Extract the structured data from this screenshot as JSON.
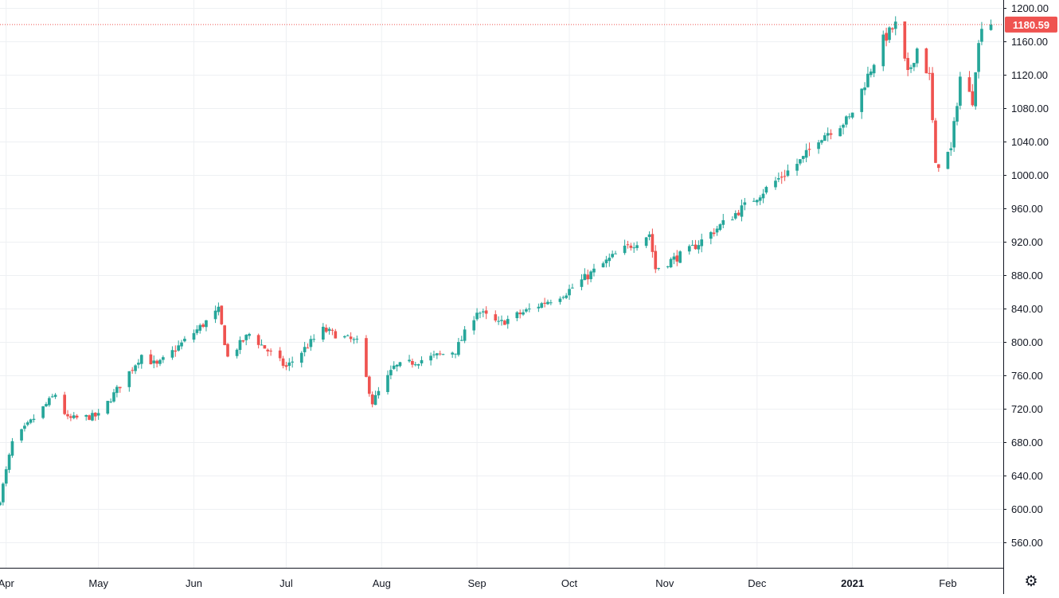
{
  "price_scale": {
    "tick_labels": [
      "560.00",
      "600.00",
      "640.00",
      "680.00",
      "720.00",
      "760.00",
      "800.00",
      "840.00",
      "880.00",
      "920.00",
      "960.00",
      "1000.00",
      "1040.00",
      "1080.00",
      "1120.00",
      "1160.00",
      "1200.00"
    ]
  },
  "time_scale": {
    "tick_labels": [
      "Apr",
      "May",
      "Jun",
      "Jul",
      "Aug",
      "Sep",
      "Oct",
      "Nov",
      "Dec",
      "2021",
      "Feb"
    ],
    "bold_label": "2021"
  },
  "last_price": {
    "label": "1180.59",
    "value": 1180.59
  },
  "colors": {
    "up": "#26a69a",
    "down": "#ef5350",
    "grid": "#eef0f3",
    "axis_line": "#131722",
    "text": "#131722",
    "last_price_line": "#ef5350",
    "last_price_bg": "#ef5350"
  },
  "icons": {
    "settings": "gear-icon"
  },
  "chart_data": {
    "type": "candlestick",
    "grid": true,
    "y_axis_position": "right",
    "ylim": [
      530,
      1210
    ],
    "xlim": [
      "2020-03-30",
      "2021-02-19"
    ],
    "x_ticks": [
      {
        "label": "Apr",
        "date": "2020-04-01"
      },
      {
        "label": "May",
        "date": "2020-05-01"
      },
      {
        "label": "Jun",
        "date": "2020-06-01"
      },
      {
        "label": "Jul",
        "date": "2020-07-01"
      },
      {
        "label": "Aug",
        "date": "2020-08-01"
      },
      {
        "label": "Sep",
        "date": "2020-09-01"
      },
      {
        "label": "Oct",
        "date": "2020-10-01"
      },
      {
        "label": "Nov",
        "date": "2020-11-01"
      },
      {
        "label": "Dec",
        "date": "2020-12-01"
      },
      {
        "label": "2021",
        "date": "2021-01-01"
      },
      {
        "label": "Feb",
        "date": "2021-02-01"
      }
    ],
    "y_ticks": [
      560,
      600,
      640,
      680,
      720,
      760,
      800,
      840,
      880,
      920,
      960,
      1000,
      1040,
      1080,
      1120,
      1160,
      1200
    ],
    "last_price": 1180.59,
    "key_points": [
      {
        "date": "2020-03-30",
        "close": 612
      },
      {
        "date": "2020-04-03",
        "close": 680
      },
      {
        "date": "2020-04-17",
        "close": 738
      },
      {
        "date": "2020-04-21",
        "close": 708
      },
      {
        "date": "2020-05-01",
        "close": 712
      },
      {
        "date": "2020-05-15",
        "close": 785
      },
      {
        "date": "2020-05-20",
        "close": 772
      },
      {
        "date": "2020-06-09",
        "close": 838
      },
      {
        "date": "2020-06-12",
        "close": 782
      },
      {
        "date": "2020-06-19",
        "close": 810
      },
      {
        "date": "2020-07-01",
        "close": 770
      },
      {
        "date": "2020-07-13",
        "close": 815
      },
      {
        "date": "2020-07-24",
        "close": 800
      },
      {
        "date": "2020-07-29",
        "close": 728
      },
      {
        "date": "2020-08-05",
        "close": 770
      },
      {
        "date": "2020-08-25",
        "close": 790
      },
      {
        "date": "2020-09-01",
        "close": 838
      },
      {
        "date": "2020-09-08",
        "close": 822
      },
      {
        "date": "2020-09-30",
        "close": 860
      },
      {
        "date": "2020-10-16",
        "close": 905
      },
      {
        "date": "2020-10-27",
        "close": 930
      },
      {
        "date": "2020-10-29",
        "close": 888
      },
      {
        "date": "2020-11-09",
        "close": 910
      },
      {
        "date": "2020-11-30",
        "close": 972
      },
      {
        "date": "2020-12-16",
        "close": 1020
      },
      {
        "date": "2020-12-21",
        "close": 1045
      },
      {
        "date": "2020-12-31",
        "close": 1068
      },
      {
        "date": "2021-01-11",
        "close": 1162
      },
      {
        "date": "2021-01-15",
        "close": 1180
      },
      {
        "date": "2021-01-19",
        "close": 1120
      },
      {
        "date": "2021-01-22",
        "close": 1152
      },
      {
        "date": "2021-01-26",
        "close": 1118
      },
      {
        "date": "2021-01-28",
        "close": 1010
      },
      {
        "date": "2021-02-02",
        "close": 1030
      },
      {
        "date": "2021-02-05",
        "close": 1118
      },
      {
        "date": "2021-02-09",
        "close": 1090
      },
      {
        "date": "2021-02-10",
        "close": 1130
      },
      {
        "date": "2021-02-12",
        "close": 1182
      },
      {
        "date": "2021-02-15",
        "close": 1180.59
      }
    ]
  }
}
